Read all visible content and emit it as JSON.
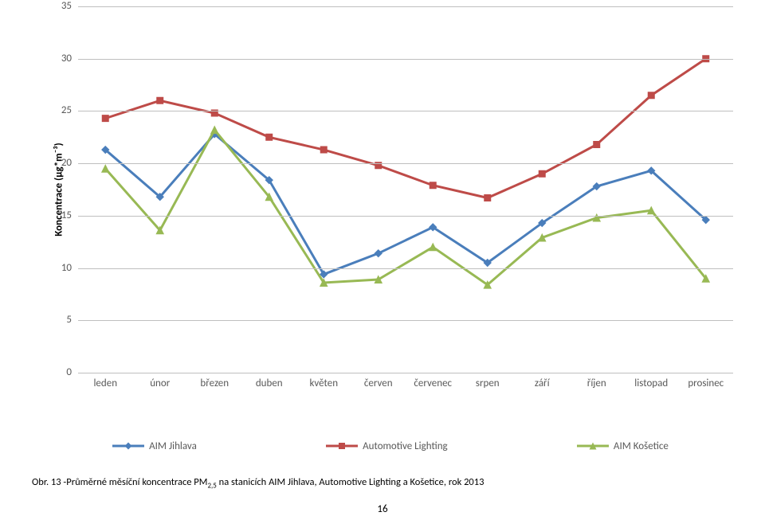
{
  "chart": {
    "type": "line",
    "y_axis_title": "Koncentrace (µg*m⁻³)",
    "ylim": [
      0,
      35
    ],
    "ytick_step": 5,
    "yticks": [
      0,
      5,
      10,
      15,
      20,
      25,
      30,
      35
    ],
    "grid_color": "#bfbfbf",
    "background_color": "#ffffff",
    "label_fontsize": 13,
    "axis_label_color": "#595959",
    "title_color": "#000000",
    "categories": [
      "leden",
      "únor",
      "březen",
      "duben",
      "květen",
      "červen",
      "červenec",
      "srpen",
      "září",
      "říjen",
      "listopad",
      "prosinec"
    ],
    "series": [
      {
        "name": "AIM Jihlava",
        "color": "#4a7ebb",
        "marker": "diamond",
        "marker_size": 9,
        "line_width": 3,
        "values": [
          21.3,
          16.8,
          22.8,
          18.4,
          9.4,
          11.4,
          13.9,
          10.5,
          14.3,
          17.8,
          19.3,
          14.6
        ]
      },
      {
        "name": "Automotive Lighting",
        "color": "#be4b48",
        "marker": "square",
        "marker_size": 8,
        "line_width": 3,
        "values": [
          24.3,
          26.0,
          24.8,
          22.5,
          21.3,
          19.8,
          17.9,
          16.7,
          19.0,
          21.8,
          26.5,
          30.0
        ]
      },
      {
        "name": "AIM Košetice",
        "color": "#98b954",
        "marker": "triangle",
        "marker_size": 9,
        "line_width": 3,
        "values": [
          19.5,
          13.6,
          23.2,
          16.8,
          8.6,
          8.9,
          12.0,
          8.4,
          12.9,
          14.8,
          15.5,
          9.0
        ]
      }
    ]
  },
  "caption": {
    "prefix": "Obr. 13 -",
    "text": "Průměrné měsíční koncentrace PM",
    "sub": "2,5",
    "suffix": " na stanicích AIM Jihlava, Automotive Lighting a Košetice, rok 2013"
  },
  "page_number": "16"
}
